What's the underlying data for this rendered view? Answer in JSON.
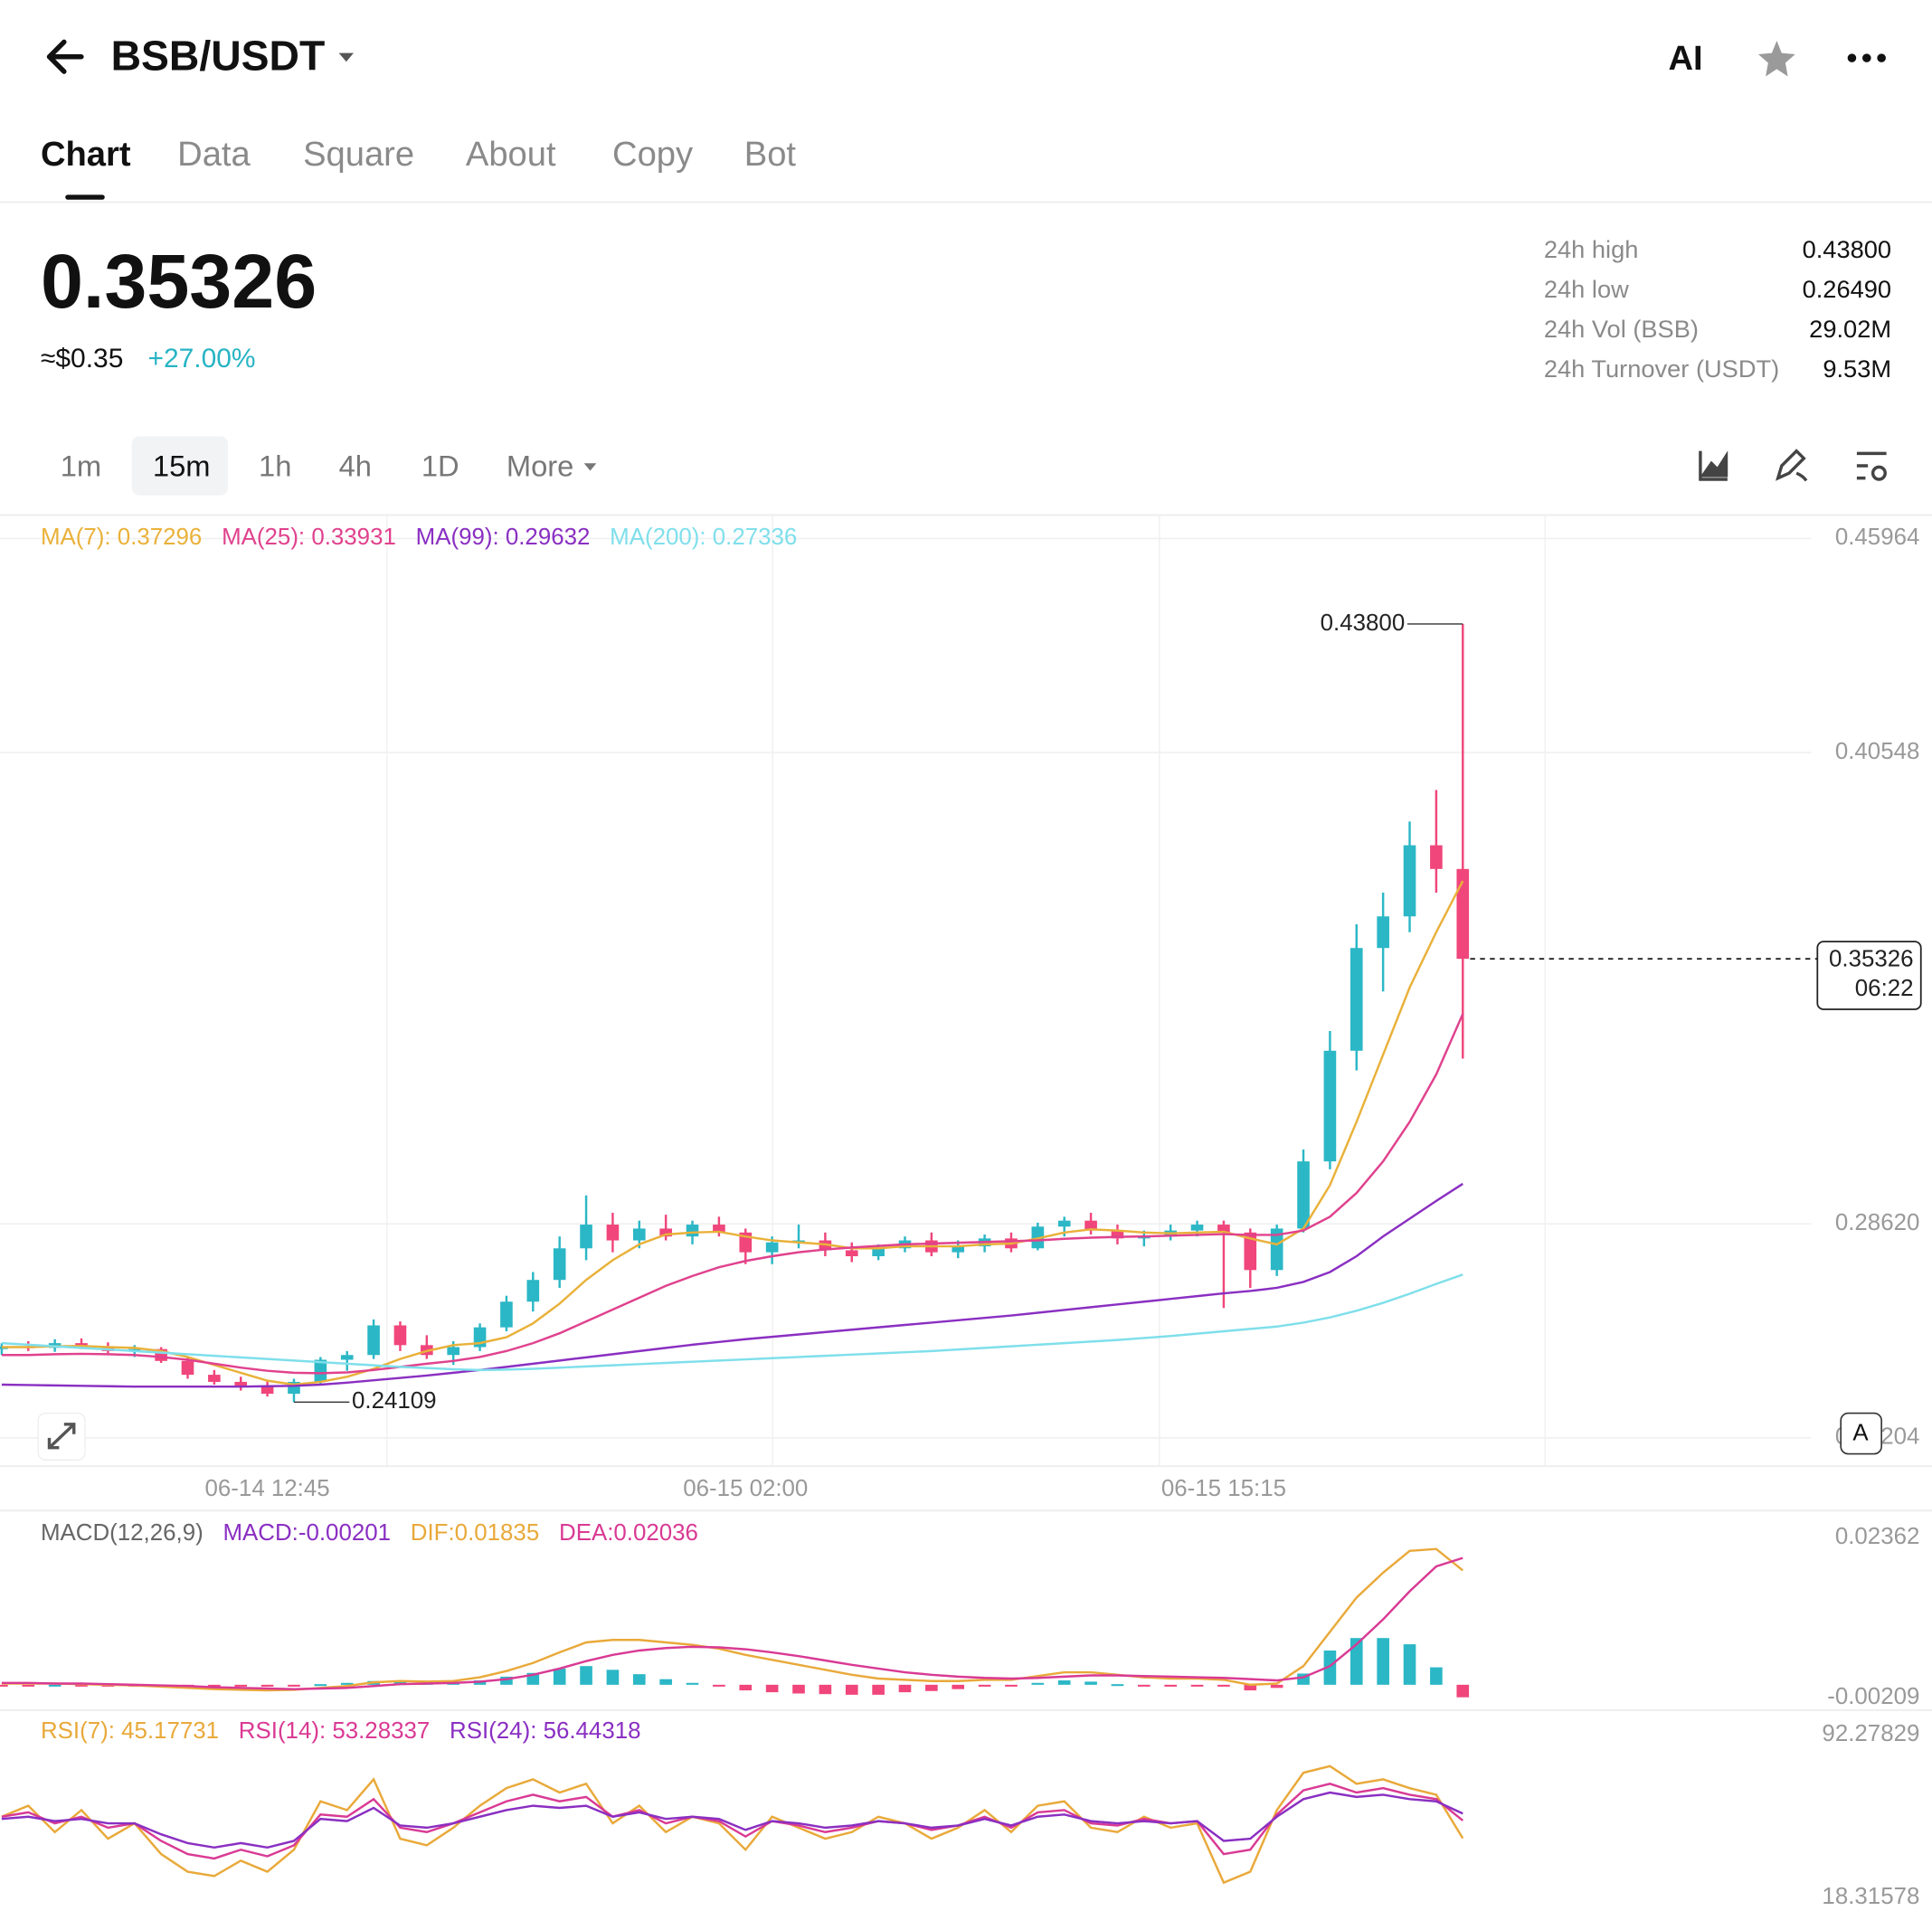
{
  "header": {
    "pair": "BSB/USDT",
    "ai_label": "AI"
  },
  "tabs": [
    "Chart",
    "Data",
    "Square",
    "About",
    "Copy",
    "Bot"
  ],
  "ticker": {
    "price": "0.35326",
    "usd": "≈$0.35",
    "change": "+27.00%"
  },
  "stats": [
    {
      "label": "24h high",
      "value": "0.43800"
    },
    {
      "label": "24h low",
      "value": "0.26490"
    },
    {
      "label": "24h Vol (BSB)",
      "value": "29.02M"
    },
    {
      "label": "24h Turnover (USDT)",
      "value": "9.53M"
    }
  ],
  "intervals": [
    "1m",
    "15m",
    "1h",
    "4h",
    "1D",
    "More"
  ],
  "scale_button": "A",
  "chart_data": [
    {
      "type": "candlestick",
      "categories": [
        null,
        null,
        null,
        null,
        null,
        null,
        null,
        null,
        null,
        null,
        "06-14 12:45",
        null,
        null,
        null,
        null,
        null,
        null,
        null,
        null,
        null,
        null,
        null,
        null,
        null,
        null,
        null,
        null,
        null,
        "06-15 02:00",
        null,
        null,
        null,
        null,
        null,
        null,
        null,
        null,
        null,
        null,
        null,
        null,
        null,
        null,
        null,
        null,
        null,
        "06-15 15:15",
        null,
        null,
        null,
        null,
        null,
        null,
        null,
        null,
        null
      ],
      "ohlc": {
        "up_color": "#2bb7c6",
        "down_color": "#f0467b",
        "open": [
          0.2545,
          0.2552,
          0.2548,
          0.256,
          0.255,
          0.254,
          0.2545,
          0.2515,
          0.248,
          0.2462,
          0.245,
          0.2432,
          0.2462,
          0.2518,
          0.253,
          0.2605,
          0.2555,
          0.253,
          0.255,
          0.26,
          0.2665,
          0.272,
          0.28,
          0.286,
          0.282,
          0.285,
          0.283,
          0.286,
          0.284,
          0.279,
          0.2815,
          0.282,
          0.2795,
          0.278,
          0.28,
          0.282,
          0.279,
          0.2805,
          0.2825,
          0.28,
          0.2855,
          0.287,
          0.2845,
          0.2825,
          0.283,
          0.2845,
          0.286,
          0.284,
          0.2745,
          0.285,
          0.302,
          0.33,
          0.356,
          0.364,
          0.382,
          0.376
        ],
        "high": [
          0.256,
          0.2565,
          0.257,
          0.2572,
          0.2562,
          0.2555,
          0.255,
          0.2525,
          0.2492,
          0.2475,
          0.2465,
          0.247,
          0.2525,
          0.254,
          0.262,
          0.2615,
          0.258,
          0.2565,
          0.261,
          0.268,
          0.274,
          0.283,
          0.2934,
          0.289,
          0.287,
          0.2885,
          0.287,
          0.288,
          0.285,
          0.283,
          0.286,
          0.284,
          0.2815,
          0.281,
          0.283,
          0.284,
          0.282,
          0.2835,
          0.284,
          0.2865,
          0.288,
          0.289,
          0.286,
          0.2845,
          0.286,
          0.287,
          0.287,
          0.285,
          0.286,
          0.305,
          0.335,
          0.362,
          0.37,
          0.388,
          0.396,
          0.438
        ],
        "low": [
          0.253,
          0.254,
          0.2538,
          0.2545,
          0.2535,
          0.2525,
          0.251,
          0.247,
          0.2455,
          0.244,
          0.2425,
          0.24109,
          0.2455,
          0.249,
          0.252,
          0.254,
          0.252,
          0.2505,
          0.254,
          0.259,
          0.264,
          0.27,
          0.277,
          0.279,
          0.28,
          0.282,
          0.281,
          0.283,
          0.276,
          0.276,
          0.28,
          0.278,
          0.2765,
          0.277,
          0.279,
          0.278,
          0.2775,
          0.279,
          0.279,
          0.2795,
          0.283,
          0.2835,
          0.281,
          0.2805,
          0.282,
          0.283,
          0.2649,
          0.27,
          0.273,
          0.284,
          0.3,
          0.325,
          0.345,
          0.36,
          0.37,
          0.328
        ],
        "close": [
          0.2552,
          0.2548,
          0.256,
          0.255,
          0.254,
          0.2545,
          0.2515,
          0.248,
          0.2462,
          0.245,
          0.2432,
          0.2462,
          0.2518,
          0.253,
          0.2605,
          0.2555,
          0.253,
          0.255,
          0.26,
          0.2665,
          0.272,
          0.28,
          0.286,
          0.282,
          0.285,
          0.283,
          0.286,
          0.284,
          0.279,
          0.2815,
          0.282,
          0.2795,
          0.278,
          0.28,
          0.282,
          0.279,
          0.2805,
          0.2825,
          0.28,
          0.2855,
          0.287,
          0.2845,
          0.2825,
          0.283,
          0.2845,
          0.286,
          0.284,
          0.2745,
          0.285,
          0.302,
          0.33,
          0.356,
          0.364,
          0.382,
          0.376,
          0.35326
        ]
      },
      "series": [
        {
          "name": "MA(7): 0.37296",
          "type": "line",
          "color": "#e9b13a",
          "values": [
            0.255,
            0.255,
            0.2552,
            0.2553,
            0.255,
            0.2548,
            0.254,
            0.2525,
            0.2505,
            0.2485,
            0.2465,
            0.2455,
            0.2462,
            0.2475,
            0.2495,
            0.252,
            0.254,
            0.2555,
            0.256,
            0.2575,
            0.261,
            0.266,
            0.272,
            0.277,
            0.281,
            0.2835,
            0.284,
            0.2842,
            0.283,
            0.282,
            0.2815,
            0.281,
            0.28,
            0.28,
            0.2805,
            0.2805,
            0.2805,
            0.281,
            0.2812,
            0.2825,
            0.284,
            0.2848,
            0.2845,
            0.284,
            0.2838,
            0.284,
            0.2842,
            0.2825,
            0.281,
            0.285,
            0.296,
            0.312,
            0.329,
            0.346,
            0.36,
            0.37296
          ]
        },
        {
          "name": "MA(25): 0.33931",
          "type": "line",
          "color": "#e0428e",
          "values": [
            0.253,
            0.253,
            0.2532,
            0.2533,
            0.2532,
            0.253,
            0.2525,
            0.2518,
            0.2508,
            0.2498,
            0.249,
            0.2485,
            0.2484,
            0.2486,
            0.2492,
            0.25,
            0.2508,
            0.2515,
            0.2525,
            0.254,
            0.256,
            0.2585,
            0.2615,
            0.2645,
            0.2675,
            0.2705,
            0.273,
            0.2752,
            0.2768,
            0.278,
            0.279,
            0.2797,
            0.2802,
            0.2806,
            0.281,
            0.2812,
            0.2814,
            0.2816,
            0.2818,
            0.282,
            0.2824,
            0.2827,
            0.2829,
            0.283,
            0.2832,
            0.2834,
            0.2836,
            0.2834,
            0.2834,
            0.2845,
            0.288,
            0.294,
            0.302,
            0.312,
            0.324,
            0.33931
          ]
        },
        {
          "name": "MA(99): 0.29632",
          "type": "line",
          "color": "#8a2fc2",
          "values": [
            0.2455,
            0.2454,
            0.2453,
            0.2452,
            0.2451,
            0.245,
            0.245,
            0.245,
            0.245,
            0.245,
            0.2451,
            0.2452,
            0.2455,
            0.246,
            0.2466,
            0.2472,
            0.2478,
            0.2485,
            0.2492,
            0.25,
            0.2508,
            0.2516,
            0.2524,
            0.2532,
            0.254,
            0.2548,
            0.2556,
            0.2563,
            0.257,
            0.2576,
            0.2582,
            0.2588,
            0.2594,
            0.26,
            0.2606,
            0.2612,
            0.2618,
            0.2624,
            0.263,
            0.2637,
            0.2644,
            0.2651,
            0.2658,
            0.2665,
            0.2672,
            0.2679,
            0.2686,
            0.2692,
            0.27,
            0.2715,
            0.274,
            0.278,
            0.283,
            0.2875,
            0.292,
            0.29632
          ]
        },
        {
          "name": "MA(200): 0.27336",
          "type": "line",
          "color": "#7fdfeb",
          "values": [
            0.256,
            0.2556,
            0.2552,
            0.2548,
            0.2544,
            0.254,
            0.2536,
            0.2532,
            0.2528,
            0.2524,
            0.252,
            0.2516,
            0.2512,
            0.2508,
            0.2504,
            0.25,
            0.2497,
            0.2494,
            0.2492,
            0.2493,
            0.2495,
            0.2498,
            0.2501,
            0.2504,
            0.2507,
            0.251,
            0.2513,
            0.2516,
            0.2519,
            0.2522,
            0.2525,
            0.2528,
            0.2531,
            0.2534,
            0.2537,
            0.254,
            0.2544,
            0.2548,
            0.2552,
            0.2556,
            0.256,
            0.2564,
            0.2568,
            0.2573,
            0.2578,
            0.2584,
            0.259,
            0.2596,
            0.2602,
            0.2612,
            0.2625,
            0.2642,
            0.2662,
            0.2685,
            0.271,
            0.27336
          ]
        }
      ],
      "annotations": {
        "high": "0.43800",
        "low": "0.24109"
      },
      "price_label": {
        "price": "0.35326",
        "countdown": "06:22"
      },
      "ylim": [
        0.23204,
        0.45964
      ],
      "yticks": [
        0.45964,
        0.40548,
        {
          "value": 0.2862,
          "label": "0.28620"
        },
        0.23204
      ],
      "grid": true
    },
    {
      "type": "macd",
      "title": "MACD(12,26,9)",
      "series": [
        {
          "name": "MACD:-0.00201",
          "type": "bar",
          "color": "#2bb7c6",
          "negative_color": "#f0467b",
          "label_color": "#8a2fc2",
          "values": [
            -0.0001,
            -0.0001,
            0,
            -0.0001,
            -0.0001,
            -0.0001,
            -0.0002,
            -0.0003,
            -0.0003,
            -0.0003,
            -0.0003,
            -0.0001,
            0.0001,
            0.0003,
            0.0006,
            0.0005,
            0.0003,
            0.0003,
            0.0007,
            0.0013,
            0.0019,
            0.0026,
            0.003,
            0.0024,
            0.0017,
            0.0009,
            0.0003,
            -0.0002,
            -0.0009,
            -0.0012,
            -0.0014,
            -0.0015,
            -0.0016,
            -0.0016,
            -0.0012,
            -0.001,
            -0.0007,
            -0.0003,
            -0.0002,
            0.0003,
            0.0007,
            0.0005,
            0.0001,
            -0.0002,
            -0.0003,
            -0.0002,
            -0.0003,
            -0.0009,
            -0.0005,
            0.0018,
            0.0055,
            0.0075,
            0.0075,
            0.0065,
            0.0028,
            -0.00201
          ]
        },
        {
          "name": "DIF:0.01835",
          "type": "line",
          "color": "#e9a93a",
          "values": [
            0.0002,
            0.0002,
            0.0002,
            0.0001,
            0,
            -0.0001,
            -0.0003,
            -0.0005,
            -0.0007,
            -0.0008,
            -0.0009,
            -0.0008,
            -0.0005,
            -0.0002,
            0.0004,
            0.0006,
            0.0005,
            0.0006,
            0.0012,
            0.0022,
            0.0035,
            0.0052,
            0.0068,
            0.0072,
            0.0072,
            0.0068,
            0.0064,
            0.0058,
            0.0048,
            0.004,
            0.0032,
            0.0024,
            0.0016,
            0.001,
            0.0008,
            0.0006,
            0.0006,
            0.0008,
            0.0008,
            0.0014,
            0.002,
            0.002,
            0.0016,
            0.0012,
            0.001,
            0.001,
            0.0008,
            0,
            0.0002,
            0.003,
            0.0085,
            0.014,
            0.018,
            0.0215,
            0.0218,
            0.01835
          ]
        },
        {
          "name": "DEA:0.02036",
          "type": "line",
          "color": "#d93a94",
          "values": [
            0.0003,
            0.0003,
            0.0002,
            0.0002,
            0.0001,
            0,
            -0.0001,
            -0.0002,
            -0.0004,
            -0.0005,
            -0.0006,
            -0.0007,
            -0.0006,
            -0.0005,
            -0.0002,
            0.0001,
            0.0002,
            0.0003,
            0.0005,
            0.0009,
            0.0016,
            0.0026,
            0.0038,
            0.0048,
            0.0055,
            0.0059,
            0.0061,
            0.006,
            0.0057,
            0.0052,
            0.0046,
            0.0039,
            0.0032,
            0.0026,
            0.002,
            0.0016,
            0.0013,
            0.0011,
            0.001,
            0.0011,
            0.0013,
            0.0015,
            0.0015,
            0.0014,
            0.0013,
            0.0012,
            0.0011,
            0.0009,
            0.0007,
            0.0012,
            0.003,
            0.0065,
            0.0105,
            0.015,
            0.019,
            0.02036
          ]
        }
      ],
      "ylim": [
        -0.00209,
        0.02362
      ],
      "yticks": [
        0.02362,
        -0.00209
      ]
    },
    {
      "type": "line",
      "series": [
        {
          "name": "RSI(7): 45.17731",
          "type": "line",
          "color": "#e9a93a",
          "values": [
            55,
            60,
            48,
            58,
            45,
            52,
            38,
            30,
            28,
            35,
            30,
            40,
            62,
            58,
            72,
            45,
            42,
            50,
            60,
            68,
            72,
            66,
            70,
            52,
            60,
            48,
            55,
            52,
            40,
            55,
            50,
            45,
            48,
            55,
            52,
            45,
            50,
            58,
            48,
            60,
            62,
            50,
            48,
            55,
            50,
            52,
            25,
            30,
            58,
            75,
            78,
            70,
            72,
            68,
            65,
            45.17731
          ]
        },
        {
          "name": "RSI(14): 53.28337",
          "type": "line",
          "color": "#d93a94",
          "values": [
            55,
            57,
            52,
            55,
            50,
            52,
            44,
            38,
            36,
            40,
            37,
            42,
            56,
            55,
            63,
            50,
            48,
            52,
            57,
            62,
            65,
            62,
            64,
            55,
            58,
            52,
            55,
            53,
            46,
            53,
            51,
            48,
            50,
            53,
            52,
            49,
            51,
            55,
            50,
            57,
            58,
            52,
            51,
            54,
            52,
            53,
            38,
            40,
            56,
            67,
            70,
            66,
            68,
            65,
            63,
            53.28337
          ]
        },
        {
          "name": "RSI(24): 56.44318",
          "type": "line",
          "color": "#8a2fc2",
          "values": [
            54,
            55,
            53,
            54,
            52,
            52,
            47,
            43,
            41,
            43,
            41,
            44,
            54,
            53,
            59,
            51,
            50,
            52,
            55,
            58,
            60,
            59,
            60,
            55,
            57,
            54,
            55,
            54,
            49,
            53,
            52,
            50,
            51,
            53,
            52,
            50,
            51,
            54,
            51,
            55,
            56,
            53,
            52,
            53,
            52,
            53,
            44,
            45,
            55,
            63,
            66,
            64,
            65,
            63,
            62,
            56.44318
          ]
        }
      ],
      "ylim": [
        18.31578,
        92.27829
      ],
      "yticks": [
        92.27829,
        18.31578
      ]
    }
  ]
}
